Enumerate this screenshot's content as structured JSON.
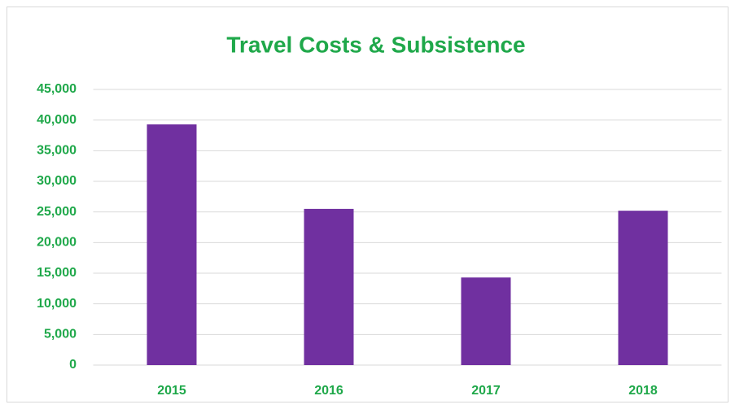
{
  "chart_data": {
    "type": "bar",
    "title": "Travel Costs & Subsistence",
    "categories": [
      "2015",
      "2016",
      "2017",
      "2018"
    ],
    "values": [
      39300,
      25500,
      14300,
      25200
    ],
    "color": "#7030a0",
    "ylim": [
      0,
      45000
    ],
    "yticks": [
      0,
      {
        "value": 5000,
        "label": "5,000"
      },
      {
        "value": 10000,
        "label": "10,000"
      },
      {
        "value": 15000,
        "label": "15,000"
      },
      {
        "value": 20000,
        "label": "20,000"
      },
      {
        "value": 25000,
        "label": "25,000"
      },
      {
        "value": 30000,
        "label": "30,000"
      },
      {
        "value": 35000,
        "label": "35,000"
      },
      {
        "value": 40000,
        "label": "40,000"
      },
      {
        "value": 45000,
        "label": "45,000"
      }
    ],
    "grid": true
  }
}
